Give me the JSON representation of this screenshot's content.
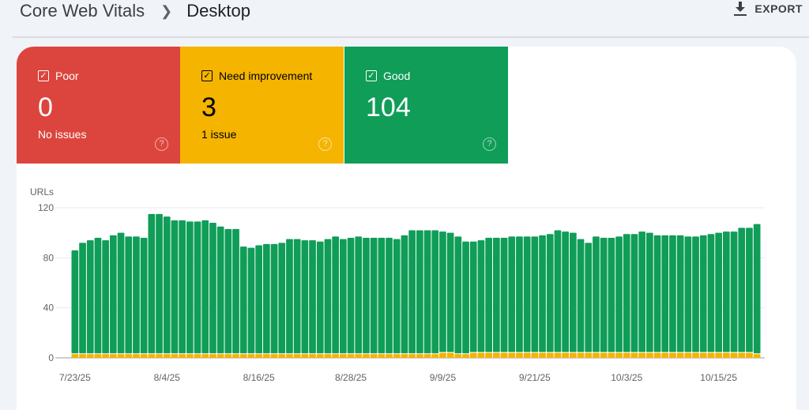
{
  "breadcrumb": {
    "parent": "Core Web Vitals",
    "current": "Desktop"
  },
  "export_label": "EXPORT",
  "tiles": [
    {
      "label": "Poor",
      "count": "0",
      "sub": "No issues",
      "color": "#dc453d"
    },
    {
      "label": "Need improvement",
      "count": "3",
      "sub": "1 issue",
      "color": "#f4b400"
    },
    {
      "label": "Good",
      "count": "104",
      "sub": "",
      "color": "#0f9d58"
    }
  ],
  "chart_data": {
    "type": "bar",
    "stacked": true,
    "ylabel": "URLs",
    "ylim": [
      0,
      120
    ],
    "yticks": [
      "0",
      "40",
      "80",
      "120"
    ],
    "xtick_labels": [
      "7/23/25",
      "8/4/25",
      "8/16/25",
      "8/28/25",
      "9/9/25",
      "9/21/25",
      "10/3/25",
      "10/15/25"
    ],
    "xtick_every": 12,
    "series": [
      {
        "name": "Poor",
        "color": "#dc453d",
        "values": "zero"
      },
      {
        "name": "Need improvement",
        "color": "#f4b400",
        "values": [
          3,
          3,
          3,
          3,
          3,
          3,
          3,
          3,
          3,
          3,
          3,
          3,
          3,
          3,
          3,
          3,
          3,
          3,
          3,
          3,
          3,
          3,
          3,
          3,
          3,
          3,
          3,
          3,
          3,
          3,
          3,
          3,
          3,
          3,
          3,
          3,
          3,
          3,
          3,
          3,
          3,
          3,
          3,
          3,
          3,
          3,
          3,
          3,
          4,
          4,
          3,
          3,
          4,
          4,
          4,
          4,
          4,
          4,
          4,
          4,
          4,
          4,
          4,
          4,
          4,
          4,
          4,
          4,
          4,
          4,
          4,
          4,
          4,
          4,
          4,
          4,
          4,
          4,
          4,
          4,
          4,
          4,
          4,
          4,
          4,
          4,
          4,
          4,
          4,
          3
        ]
      },
      {
        "name": "Good",
        "color": "#0f9d58",
        "totals": [
          86,
          92,
          94,
          96,
          94,
          98,
          100,
          97,
          97,
          96,
          115,
          115,
          113,
          110,
          110,
          109,
          109,
          110,
          108,
          105,
          103,
          103,
          89,
          88,
          90,
          91,
          91,
          92,
          95,
          95,
          94,
          94,
          93,
          95,
          97,
          95,
          96,
          97,
          96,
          96,
          96,
          96,
          95,
          98,
          102,
          102,
          102,
          102,
          101,
          100,
          97,
          93,
          93,
          94,
          96,
          96,
          96,
          97,
          97,
          97,
          97,
          98,
          99,
          102,
          101,
          100,
          95,
          92,
          97,
          96,
          96,
          97,
          99,
          99,
          101,
          100,
          98,
          98,
          98,
          98,
          97,
          97,
          98,
          99,
          100,
          101,
          101,
          104,
          104,
          107
        ]
      }
    ]
  }
}
